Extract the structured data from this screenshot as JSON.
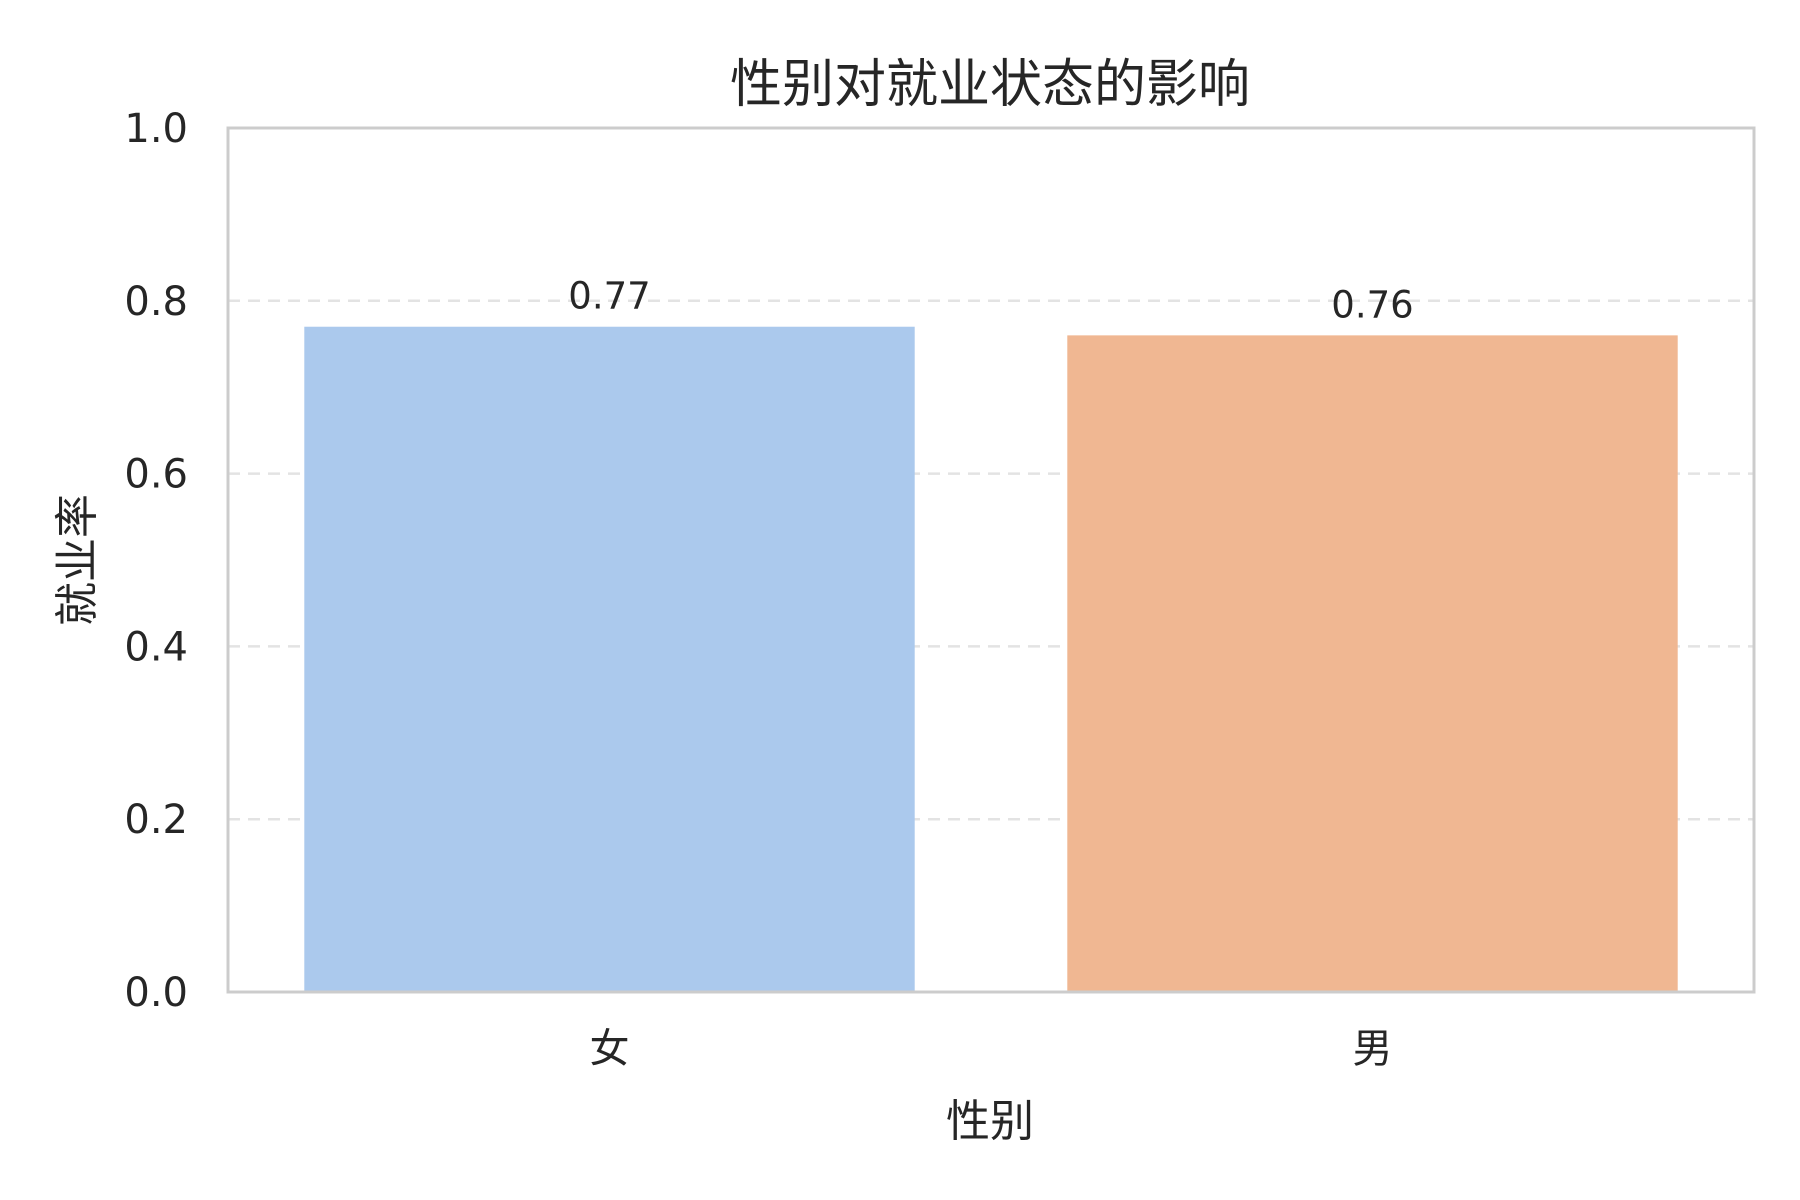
{
  "chart_data": {
    "type": "bar",
    "title": "性别对就业状态的影响",
    "xlabel": "性别",
    "ylabel": "就业率",
    "categories": [
      "女",
      "男"
    ],
    "values": [
      0.77,
      0.76
    ],
    "data_labels": [
      "0.77",
      "0.76"
    ],
    "ylim": [
      0,
      1.0
    ],
    "yticks": [
      0.0,
      0.2,
      0.4,
      0.6,
      0.8,
      1.0
    ],
    "ytick_labels": [
      "0.0",
      "0.2",
      "0.4",
      "0.6",
      "0.8",
      "1.0"
    ],
    "grid": "y-dashed",
    "colors": [
      "#abc9ed",
      "#f0b792"
    ]
  }
}
